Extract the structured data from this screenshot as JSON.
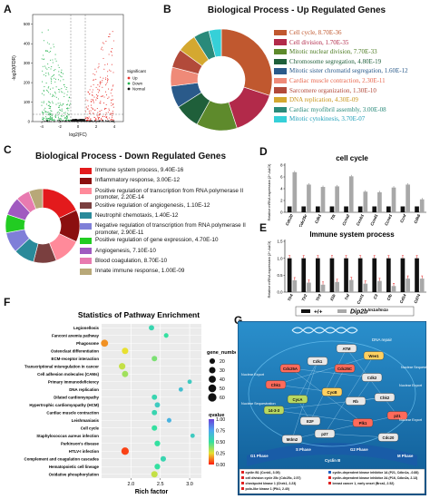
{
  "panel_labels": {
    "A": "A",
    "B": "B",
    "C": "C",
    "D": "D",
    "E": "E",
    "F": "F",
    "G": "G"
  },
  "colors": {
    "up": "#e8322d",
    "down": "#22b14c",
    "normal": "#111111",
    "bar_wt": "#111111",
    "bar_ko": "#a8a8a8",
    "err": "#e02020",
    "pathway_bg": "#1a6fa8"
  },
  "panel_a": {
    "xlabel": "log2(FC)",
    "ylabel": "-log10(FDR)",
    "yticks": [
      "0",
      "100",
      "200",
      "300",
      "400",
      "500"
    ],
    "xticks": [
      "-4",
      "-2",
      "0",
      "2",
      "4"
    ],
    "legend_title": "Significant",
    "legend": [
      {
        "label": "Up",
        "color": "#e8322d"
      },
      {
        "label": "Down",
        "color": "#22b14c"
      },
      {
        "label": "Normal",
        "color": "#111111"
      }
    ]
  },
  "panel_b": {
    "title": "Biological Process - Up Regulated Genes",
    "items": [
      {
        "label": "Cell cycle, 8.70E-36",
        "color": "#c0582f",
        "text_color": "#c0582f",
        "value": 30
      },
      {
        "label": "Cell division, 1.70E-35",
        "color": "#b22a4a",
        "text_color": "#b22a4a",
        "value": 15
      },
      {
        "label": "Mitotic nuclear division, 7.70E-33",
        "color": "#5e8a2c",
        "text_color": "#4a7a20",
        "value": 13
      },
      {
        "label": "Chromosome segregation, 4.80E-19",
        "color": "#1f5f3a",
        "text_color": "#1f5f3a",
        "value": 8
      },
      {
        "label": "Mitotic sister chromatid segregation, 1.60E-12",
        "color": "#2a5a8a",
        "text_color": "#2a5a8a",
        "value": 7
      },
      {
        "label": "Cardiac muscle contraction, 2.30E-11",
        "color": "#ef8a78",
        "text_color": "#e8684f",
        "value": 6
      },
      {
        "label": "Sarcomere organization, 1.30E-10",
        "color": "#b24a3a",
        "text_color": "#b24a3a",
        "value": 6
      },
      {
        "label": "DNA replication, 4.30E-09",
        "color": "#d4a830",
        "text_color": "#c89418",
        "value": 6
      },
      {
        "label": "Cardiac myofibril assembly, 3.00E-08",
        "color": "#2a8a7a",
        "text_color": "#2a8a7a",
        "value": 5
      },
      {
        "label": "Mitotic cytokinesis, 3.70E-07",
        "color": "#36d0d8",
        "text_color": "#1f9fb8",
        "value": 4
      }
    ]
  },
  "panel_c": {
    "title": "Biological Process - Down Regulated Genes",
    "items": [
      {
        "label": "Immune system process, 9.40E-16",
        "color": "#e31a1c",
        "value": 18
      },
      {
        "label": "Inflammatory response, 3.00E-12",
        "color": "#8b0f0f",
        "value": 14
      },
      {
        "label": "Positive regulation of transcription from RNA polymerase II promoter, 2.20E-14",
        "color": "#ff8a9a",
        "value": 12
      },
      {
        "label": "Positive regulation of angiogenesis, 1.10E-12",
        "color": "#7a3f3f",
        "value": 10
      },
      {
        "label": "Neutrophil chemotaxis, 1.40E-12",
        "color": "#2a8a9a",
        "value": 9
      },
      {
        "label": "Negative regulation of transcription from RNA polymerase II promoter, 2.90E-11",
        "color": "#7f7fd8",
        "value": 9
      },
      {
        "label": "Positive regulation of gene expression, 4.70E-10",
        "color": "#22cc22",
        "value": 8
      },
      {
        "label": "Angiogenesis, 7.10E-10",
        "color": "#a05ac0",
        "value": 8
      },
      {
        "label": "Blood coagulation, 8.70E-10",
        "color": "#e87ab0",
        "value": 6
      },
      {
        "label": "Innate immune response, 1.00E-09",
        "color": "#b8a878",
        "value": 6
      }
    ]
  },
  "panel_d": {
    "title": "cell cycle",
    "ylabel": "Relative mRNA expression (2^-ΔΔCt)",
    "yticks": [
      "0",
      "2",
      "4",
      "6",
      "8"
    ],
    "ymax": 8,
    "genes": [
      "Cdc20",
      "Cdc25c",
      "Cdk1",
      "Ttk",
      "Ccna2",
      "Ccnb1",
      "Ccnd1",
      "Ccne1",
      "Ccnf",
      "Cdk6"
    ],
    "wt": [
      1,
      1,
      1,
      1,
      1,
      1,
      1,
      1,
      1,
      1
    ],
    "ko": [
      6.8,
      4.7,
      4.3,
      4.4,
      6.1,
      3.5,
      3.4,
      4.2,
      4.7,
      2.2
    ]
  },
  "panel_e": {
    "title": "Immune system process",
    "ylabel": "Relative mRNA expression (2^-ΔΔCt)",
    "yticks": [
      "0.0",
      "0.5",
      "1.0",
      "1.5"
    ],
    "ymax": 1.5,
    "genes": [
      "Tlr4",
      "Tlr2",
      "Tlr9",
      "Il1b",
      "Tnf",
      "Cxcl1",
      "C3",
      "Cfb",
      "Cd14",
      "Cd74"
    ],
    "wt": [
      1,
      1,
      1,
      1,
      1,
      1,
      1,
      1,
      1,
      1
    ],
    "ko": [
      0.35,
      0.28,
      0.22,
      0.3,
      0.36,
      0.25,
      0.33,
      0.18,
      0.4,
      0.4
    ],
    "legend_wt": "+/+",
    "legend_ko_base": "Dip2b",
    "legend_ko_sup": "tm1a/tm1a"
  },
  "panel_f": {
    "title": "Statistics of Pathway Enrichment",
    "xlabel": "Rich factor",
    "xticks": [
      "2.0",
      "2.5",
      "3.0"
    ],
    "xmin": 1.5,
    "xmax": 3.2,
    "size_legend_title": "gene_number",
    "size_legend": [
      20,
      30,
      40,
      50,
      60
    ],
    "color_legend_title": "qvalue",
    "color_ticks": [
      "1.00",
      "0.75",
      "0.50",
      "0.25",
      "0.00"
    ],
    "terms": [
      {
        "name": "Legionellosis",
        "rich": 2.35,
        "n": 18,
        "q": 0.55
      },
      {
        "name": "Fanconi anemia pathway",
        "rich": 2.6,
        "n": 12,
        "q": 0.5
      },
      {
        "name": "Phagosome",
        "rich": 1.55,
        "n": 40,
        "q": 0.15
      },
      {
        "name": "Osteoclast differentiation",
        "rich": 1.9,
        "n": 30,
        "q": 0.25
      },
      {
        "name": "ECM-receptor interaction",
        "rich": 2.4,
        "n": 20,
        "q": 0.4
      },
      {
        "name": "Transcriptional misregulation in cancer",
        "rich": 1.85,
        "n": 32,
        "q": 0.3
      },
      {
        "name": "Cell adhesion molecules (CAMs)",
        "rich": 1.9,
        "n": 28,
        "q": 0.35
      },
      {
        "name": "Primary immunodeficiency",
        "rich": 3.0,
        "n": 10,
        "q": 0.6
      },
      {
        "name": "DNA replication",
        "rich": 2.85,
        "n": 10,
        "q": 0.65
      },
      {
        "name": "Dilated cardiomyopathy",
        "rich": 2.4,
        "n": 18,
        "q": 0.55
      },
      {
        "name": "Hypertrophic cardiomyopathy (HCM)",
        "rich": 2.45,
        "n": 18,
        "q": 0.6
      },
      {
        "name": "Cardiac muscle contraction",
        "rich": 2.4,
        "n": 18,
        "q": 0.55
      },
      {
        "name": "Leishmaniasis",
        "rich": 2.65,
        "n": 12,
        "q": 0.7
      },
      {
        "name": "Cell cycle",
        "rich": 2.4,
        "n": 20,
        "q": 0.5
      },
      {
        "name": "Staphylococcus aureus infection",
        "rich": 3.05,
        "n": 10,
        "q": 0.6
      },
      {
        "name": "Parkinson's disease",
        "rich": 2.45,
        "n": 22,
        "q": 0.5
      },
      {
        "name": "HTLV-I infection",
        "rich": 1.9,
        "n": 45,
        "q": 0.05
      },
      {
        "name": "Complement and coagulation cascades",
        "rich": 2.55,
        "n": 20,
        "q": 0.55
      },
      {
        "name": "Hematopoietic cell lineage",
        "rich": 2.45,
        "n": 22,
        "q": 0.5
      },
      {
        "name": "Oxidative phosphorylation",
        "rich": 2.4,
        "n": 30,
        "q": 0.3
      }
    ]
  },
  "panel_g": {
    "top_label": "DNA repair",
    "side_labels": [
      "Nuclear Export",
      "Nuclear Sequestration",
      "Nuclear Export",
      "Nuclear Sequestration",
      "Nuclear Export"
    ],
    "proteins": [
      "Cdc25A",
      "Cdk1",
      "Cdc25C",
      "Cdk2",
      "CycA",
      "CycB",
      "Rb",
      "E2F",
      "Chk1",
      "Chk2",
      "ATM",
      "Wee1",
      "14-3-3",
      "p21",
      "p27",
      "Plk1",
      "Mdm2",
      "Cdc20"
    ],
    "phase_labels": [
      "G1 Phase",
      "S Phase",
      "G2 Phase",
      "M Phase",
      "Cyclin B"
    ],
    "legend": [
      "cyclin B1 (Ccnb1, 3.05)",
      "cell division cycle 25c (Cdc25c, 2.57)",
      "checkpoint kinase 1 (Chek1, 2.23)",
      "polo-like kinase 1 (Plk1, 2.40)",
      "cyclin-dependent kinase inhibitor 1A (P21, Cdkn1a, -0.88)",
      "cyclin-dependent kinase inhibitor 2A (P16, Cdkn2a, 2.13)",
      "breast cancer 1, early onset (Brca1, 2.52)"
    ]
  }
}
